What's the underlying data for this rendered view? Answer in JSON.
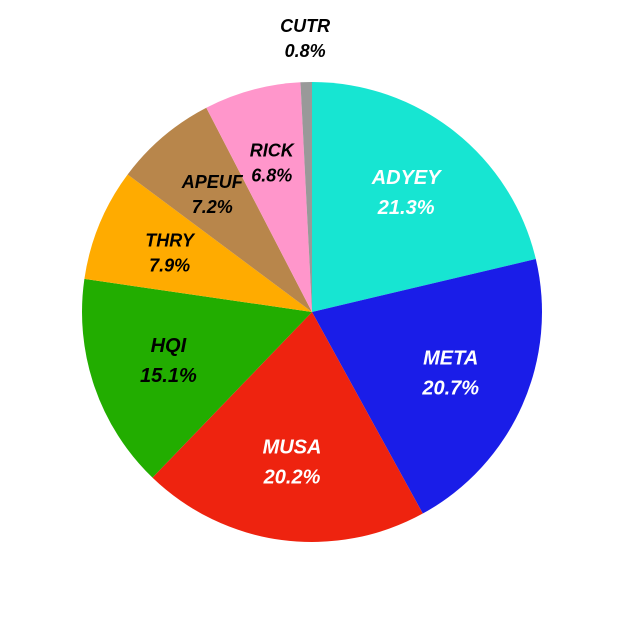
{
  "chart_data": {
    "type": "pie",
    "title": "",
    "start": "12 o'clock",
    "direction": "clockwise",
    "slices": [
      {
        "label": "ADYEY",
        "value": 21.3,
        "value_label": "21.3%",
        "color": "#17e5d2",
        "text_color": "#ffffff"
      },
      {
        "label": "META",
        "value": 20.7,
        "value_label": "20.7%",
        "color": "#1a1de8",
        "text_color": "#ffffff"
      },
      {
        "label": "MUSA",
        "value": 20.2,
        "value_label": "20.2%",
        "color": "#ee230f",
        "text_color": "#ffffff"
      },
      {
        "label": "HQI",
        "value": 15.1,
        "value_label": "15.1%",
        "color": "#22ad00",
        "text_color": "#000000"
      },
      {
        "label": "THRY",
        "value": 7.9,
        "value_label": "7.9%",
        "color": "#ffab00",
        "text_color": "#000000"
      },
      {
        "label": "APEUF",
        "value": 7.2,
        "value_label": "7.2%",
        "color": "#b8864b",
        "text_color": "#000000"
      },
      {
        "label": "RICK",
        "value": 6.8,
        "value_label": "6.8%",
        "color": "#ff96cb",
        "text_color": "#000000"
      },
      {
        "label": "CUTR",
        "value": 0.8,
        "value_label": "0.8%",
        "color": "#999999",
        "text_color": "#000000"
      }
    ]
  }
}
